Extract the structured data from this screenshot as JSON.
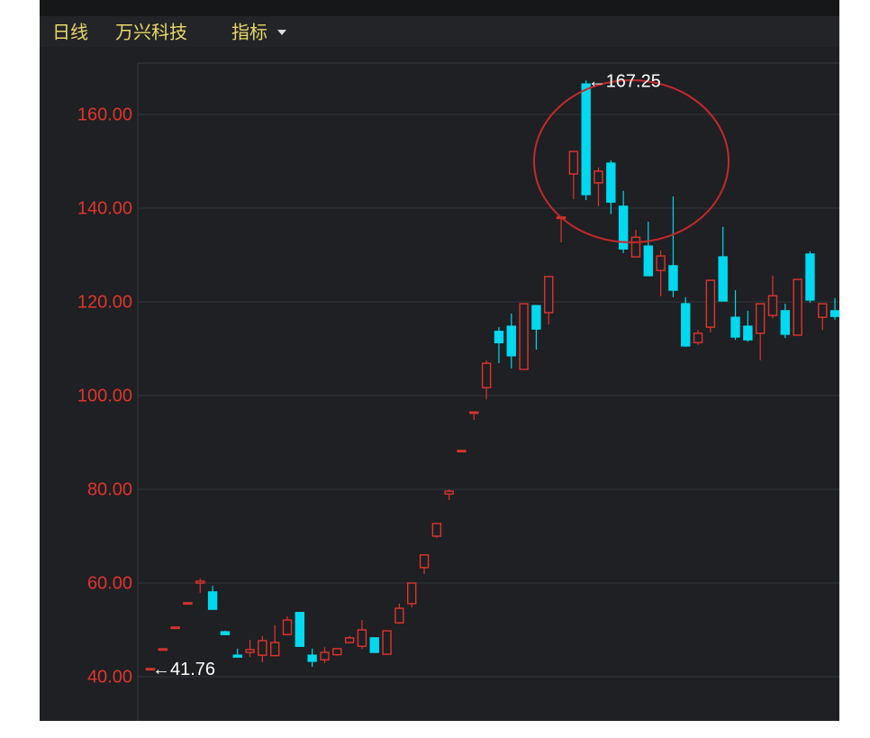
{
  "header": {
    "period": "日线",
    "stock": "万兴科技",
    "indicator": "指标"
  },
  "chart_data": {
    "type": "candlestick",
    "up_color": "#e0342c",
    "down_color": "#00d9f0",
    "grid": true,
    "ylim": [
      36.35,
      170.96
    ],
    "yticks": [
      {
        "value": 40,
        "label": "40.00"
      },
      {
        "value": 60,
        "label": "60.00"
      },
      {
        "value": 80,
        "label": "80.00"
      },
      {
        "value": 100,
        "label": "100.00"
      },
      {
        "value": 120,
        "label": "120.00"
      },
      {
        "value": 140,
        "label": "140.00"
      },
      {
        "value": 160,
        "label": "160.00"
      }
    ],
    "open": [
      41.76,
      45.96,
      50.6,
      55.8,
      60.0,
      58.1,
      49.6,
      44.6,
      45.2,
      44.6,
      44.5,
      49.0,
      53.7,
      44.6,
      43.6,
      44.7,
      47.3,
      46.5,
      48.3,
      44.8,
      51.5,
      55.6,
      63.3,
      70.0,
      79.0,
      88.3,
      96.5,
      101.7,
      113.7,
      114.8,
      105.6,
      119.2,
      117.7,
      138.1,
      147.3,
      166.5,
      145.4,
      149.6,
      140.4,
      129.6,
      131.9,
      126.7,
      127.7,
      119.6,
      111.3,
      114.6,
      129.6,
      116.7,
      114.8,
      113.3,
      117.1,
      118.1,
      112.9,
      130.2,
      116.7,
      118.1
    ],
    "high": [
      41.76,
      45.96,
      50.6,
      55.8,
      61.0,
      59.4,
      49.8,
      46.0,
      47.9,
      48.7,
      51.0,
      52.9,
      53.7,
      46.0,
      46.3,
      46.1,
      48.7,
      52.1,
      48.3,
      49.8,
      55.6,
      60.0,
      66.0,
      72.7,
      80.0,
      88.3,
      96.5,
      107.5,
      114.6,
      117.5,
      119.6,
      119.2,
      125.4,
      138.1,
      152.1,
      167.25,
      148.7,
      150.2,
      143.7,
      135.4,
      137.1,
      131.0,
      142.5,
      121.0,
      114.0,
      124.6,
      136.0,
      122.5,
      118.1,
      119.6,
      125.6,
      119.6,
      124.8,
      130.8,
      119.6,
      120.8
    ],
    "low": [
      41.76,
      45.96,
      50.6,
      55.8,
      57.9,
      54.4,
      49.0,
      44.2,
      44.2,
      43.1,
      44.4,
      49.0,
      46.5,
      42.1,
      42.9,
      44.5,
      47.1,
      45.9,
      45.2,
      44.8,
      51.3,
      54.8,
      61.9,
      69.6,
      77.7,
      88.3,
      94.8,
      99.2,
      106.9,
      105.8,
      105.6,
      109.8,
      115.2,
      132.7,
      141.9,
      141.7,
      140.4,
      138.7,
      130.4,
      129.6,
      125.6,
      121.2,
      121.0,
      110.4,
      110.8,
      113.5,
      120.2,
      111.9,
      111.5,
      107.5,
      116.5,
      112.3,
      112.9,
      119.8,
      114.0,
      116.2
    ],
    "close": [
      41.76,
      45.96,
      50.6,
      55.8,
      60.4,
      54.4,
      49.0,
      44.2,
      45.8,
      47.7,
      47.3,
      52.1,
      46.5,
      43.3,
      45.2,
      46.0,
      48.3,
      50.0,
      45.2,
      49.8,
      54.6,
      60.0,
      66.0,
      72.7,
      79.6,
      88.3,
      96.5,
      106.9,
      111.3,
      108.5,
      119.6,
      114.2,
      125.4,
      138.1,
      152.1,
      142.9,
      147.9,
      141.3,
      131.3,
      133.8,
      125.6,
      129.8,
      122.5,
      110.6,
      113.3,
      124.6,
      120.2,
      112.5,
      111.9,
      119.6,
      121.3,
      113.1,
      124.8,
      120.4,
      119.6,
      116.9
    ],
    "annotations": [
      {
        "label": "←167.25",
        "value": 167.25
      },
      {
        "label": "←41.76",
        "value": 41.76
      }
    ]
  }
}
